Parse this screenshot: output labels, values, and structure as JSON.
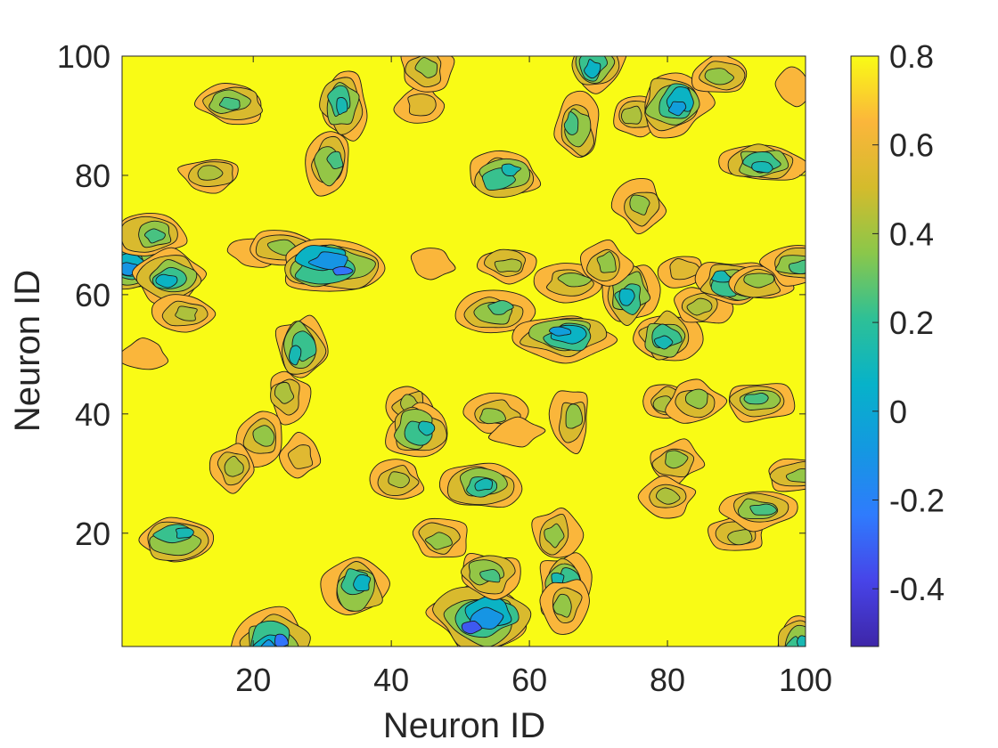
{
  "chart_data": {
    "type": "heatmap",
    "subtype": "filled-contour",
    "title": "",
    "xlabel": "Neuron ID",
    "ylabel": "Neuron ID",
    "xlim": [
      1,
      100
    ],
    "ylim": [
      1,
      100
    ],
    "x_ticks": [
      20,
      40,
      60,
      80,
      100
    ],
    "y_ticks": [
      20,
      40,
      60,
      80,
      100
    ],
    "colorbar": {
      "range": [
        -0.53,
        0.8
      ],
      "ticks": [
        0.8,
        0.6,
        0.4,
        0.2,
        0,
        -0.2,
        -0.4
      ],
      "tick_labels": [
        "0.8",
        "0.6",
        "0.4",
        "0.2",
        "0",
        "-0.2",
        "-0.4"
      ],
      "colormap": "parula",
      "colors": [
        "#3e26a8",
        "#4744e8",
        "#2f7bfd",
        "#1498e1",
        "#07b2c9",
        "#2ec096",
        "#8bc74a",
        "#d4bb2c",
        "#fbb63b",
        "#f9fb15"
      ]
    },
    "background_value": 0.8,
    "contour_levels": [
      0.7,
      0.6,
      0.45,
      0.3,
      0.15,
      0.0,
      -0.2
    ],
    "features": [
      {
        "x": 2,
        "y": 65,
        "min": -0.2
      },
      {
        "x": 5,
        "y": 70,
        "min": 0.2
      },
      {
        "x": 8,
        "y": 63,
        "min": 0.0
      },
      {
        "x": 10,
        "y": 57,
        "min": 0.4
      },
      {
        "x": 9,
        "y": 19,
        "min": 0.1
      },
      {
        "x": 4,
        "y": 50,
        "min": 0.6
      },
      {
        "x": 14,
        "y": 80,
        "min": 0.4
      },
      {
        "x": 17,
        "y": 92,
        "min": 0.2
      },
      {
        "x": 20,
        "y": 67,
        "min": 0.6
      },
      {
        "x": 24,
        "y": 68,
        "min": 0.3
      },
      {
        "x": 31,
        "y": 65,
        "min": -0.3
      },
      {
        "x": 33,
        "y": 92,
        "min": 0.1
      },
      {
        "x": 31,
        "y": 82,
        "min": 0.2
      },
      {
        "x": 27,
        "y": 51,
        "min": 0.1
      },
      {
        "x": 25,
        "y": 43,
        "min": 0.4
      },
      {
        "x": 21,
        "y": 36,
        "min": 0.3
      },
      {
        "x": 17,
        "y": 31,
        "min": 0.4
      },
      {
        "x": 27,
        "y": 33,
        "min": 0.5
      },
      {
        "x": 35,
        "y": 11,
        "min": 0.0
      },
      {
        "x": 23,
        "y": 1,
        "min": -0.3
      },
      {
        "x": 43,
        "y": 41,
        "min": 0.4
      },
      {
        "x": 44,
        "y": 37,
        "min": 0.1
      },
      {
        "x": 44,
        "y": 92,
        "min": 0.5
      },
      {
        "x": 45,
        "y": 98,
        "min": 0.3
      },
      {
        "x": 41,
        "y": 29,
        "min": 0.4
      },
      {
        "x": 47,
        "y": 19,
        "min": 0.3
      },
      {
        "x": 46,
        "y": 65,
        "min": 0.6
      },
      {
        "x": 53,
        "y": 6,
        "min": -0.45
      },
      {
        "x": 54,
        "y": 13,
        "min": 0.2
      },
      {
        "x": 53,
        "y": 28,
        "min": 0.1
      },
      {
        "x": 56,
        "y": 80,
        "min": 0.1
      },
      {
        "x": 55,
        "y": 57,
        "min": 0.2
      },
      {
        "x": 57,
        "y": 65,
        "min": 0.4
      },
      {
        "x": 55,
        "y": 40,
        "min": 0.3
      },
      {
        "x": 58,
        "y": 37,
        "min": 0.6
      },
      {
        "x": 65,
        "y": 53,
        "min": -0.1
      },
      {
        "x": 66,
        "y": 62,
        "min": 0.3
      },
      {
        "x": 66,
        "y": 39,
        "min": 0.3
      },
      {
        "x": 67,
        "y": 88,
        "min": 0.2
      },
      {
        "x": 65,
        "y": 11,
        "min": 0.1
      },
      {
        "x": 65,
        "y": 8,
        "min": 0.3
      },
      {
        "x": 64,
        "y": 20,
        "min": 0.3
      },
      {
        "x": 70,
        "y": 99,
        "min": 0.0
      },
      {
        "x": 74,
        "y": 60,
        "min": 0.0
      },
      {
        "x": 71,
        "y": 65,
        "min": 0.3
      },
      {
        "x": 76,
        "y": 75,
        "min": 0.3
      },
      {
        "x": 75,
        "y": 90,
        "min": 0.4
      },
      {
        "x": 81,
        "y": 92,
        "min": -0.1
      },
      {
        "x": 80,
        "y": 53,
        "min": 0.1
      },
      {
        "x": 80,
        "y": 42,
        "min": 0.4
      },
      {
        "x": 84,
        "y": 42,
        "min": 0.3
      },
      {
        "x": 81,
        "y": 32,
        "min": 0.3
      },
      {
        "x": 80,
        "y": 26,
        "min": 0.4
      },
      {
        "x": 82,
        "y": 64,
        "min": 0.5
      },
      {
        "x": 85,
        "y": 58,
        "min": 0.4
      },
      {
        "x": 88,
        "y": 97,
        "min": 0.3
      },
      {
        "x": 89,
        "y": 62,
        "min": 0.1
      },
      {
        "x": 90,
        "y": 20,
        "min": 0.4
      },
      {
        "x": 93,
        "y": 62,
        "min": 0.3
      },
      {
        "x": 93,
        "y": 42,
        "min": 0.2
      },
      {
        "x": 94,
        "y": 82,
        "min": 0.1
      },
      {
        "x": 93,
        "y": 24,
        "min": 0.2
      },
      {
        "x": 99,
        "y": 65,
        "min": 0.2
      },
      {
        "x": 99,
        "y": 30,
        "min": 0.3
      },
      {
        "x": 99,
        "y": 1,
        "min": 0.1
      },
      {
        "x": 98,
        "y": 95,
        "min": 0.6
      }
    ]
  }
}
